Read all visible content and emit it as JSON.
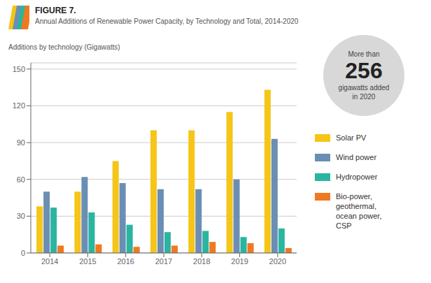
{
  "chart_data": {
    "type": "bar",
    "title": "FIGURE 7.",
    "subtitle": "Annual Additions of Renewable Power Capacity, by Technology and Total, 2014-2020",
    "ylabel": "Additions by technology (Gigawatts)",
    "categories": [
      "2014",
      "2015",
      "2016",
      "2017",
      "2018",
      "2019",
      "2020"
    ],
    "series": [
      {
        "name": "Solar PV",
        "color": "#f5c518",
        "values": [
          38,
          50,
          75,
          100,
          100,
          115,
          133
        ]
      },
      {
        "name": "Wind power",
        "color": "#6b8eb5",
        "values": [
          50,
          62,
          57,
          52,
          52,
          60,
          93
        ]
      },
      {
        "name": "Hydropower",
        "color": "#2ab5a0",
        "values": [
          37,
          33,
          23,
          17,
          18,
          13,
          20
        ]
      },
      {
        "name": "Bio-power,\ngeothermal,\nocean power,\nCSP",
        "color": "#f07820",
        "values": [
          6,
          7,
          5,
          6,
          9,
          8,
          4
        ]
      }
    ],
    "ylim": [
      0,
      155
    ],
    "yticks": [
      0,
      30,
      60,
      90,
      120,
      150
    ],
    "grid": true,
    "legend": "right",
    "annotations": [
      "More than",
      "256",
      "gigawatts added\nin 2020"
    ]
  }
}
